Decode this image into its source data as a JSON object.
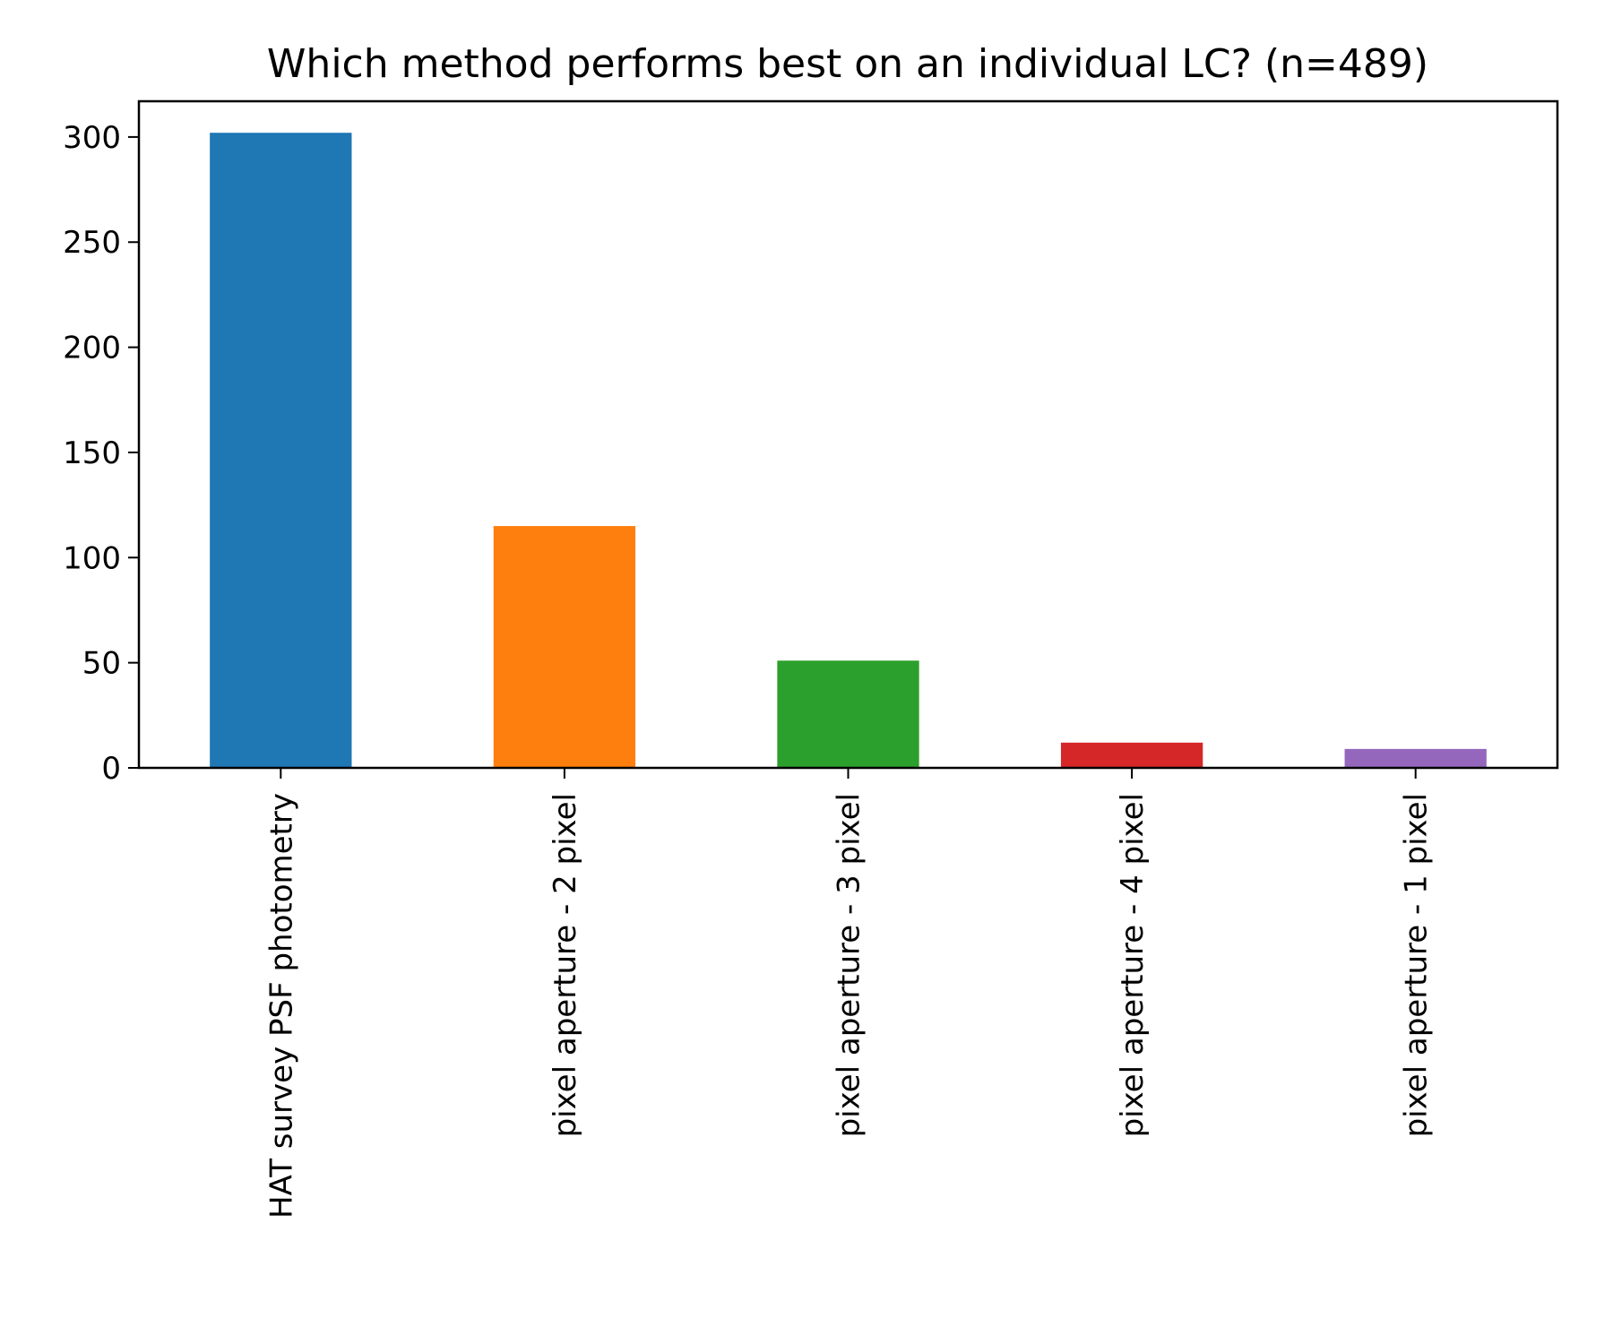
{
  "chart_data": {
    "type": "bar",
    "title": "Which method performs best on an individual LC? (n=489)",
    "xlabel": "",
    "ylabel": "",
    "categories": [
      "HAT survey PSF photometry",
      "pixel aperture - 2 pixel",
      "pixel aperture - 3 pixel",
      "pixel aperture - 4 pixel",
      "pixel aperture - 1 pixel"
    ],
    "values": [
      302,
      115,
      51,
      12,
      9
    ],
    "colors": [
      "#1f77b4",
      "#ff7f0e",
      "#2ca02c",
      "#d62728",
      "#9467bd"
    ],
    "ylim": [
      0,
      317
    ],
    "yticks": [
      0,
      50,
      100,
      150,
      200,
      250,
      300
    ],
    "grid": false,
    "legend": "none"
  }
}
